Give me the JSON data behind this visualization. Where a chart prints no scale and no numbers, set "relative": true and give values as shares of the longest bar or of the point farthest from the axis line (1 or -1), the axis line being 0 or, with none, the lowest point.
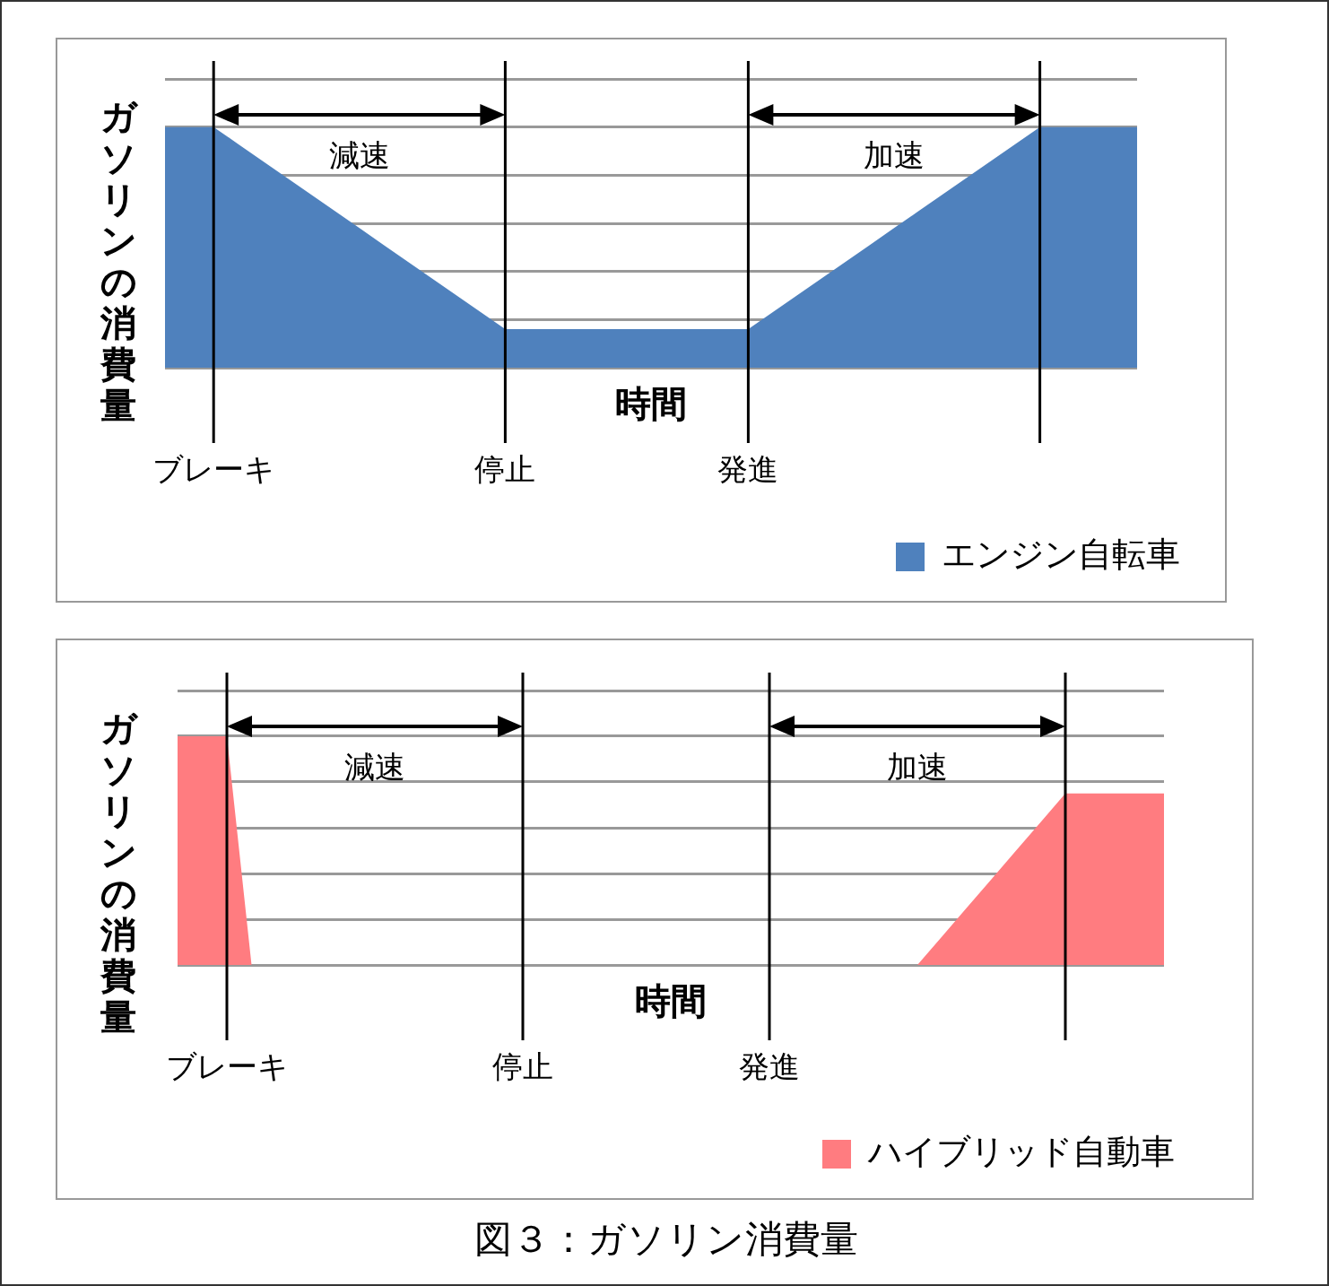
{
  "chart_data": [
    {
      "type": "area",
      "relative": true,
      "xlabel": "時間",
      "ylabel": "ガソリンの消費量",
      "tick_labels": "x",
      "grid": true,
      "legend": "bottom right",
      "categories": [
        null,
        null,
        "ブレーキ",
        null,
        null,
        null,
        null,
        null,
        null,
        null,
        null,
        null,
        null,
        null,
        "停止",
        null,
        null,
        null,
        null,
        null,
        null,
        null,
        null,
        null,
        "発進",
        null,
        null,
        null,
        null,
        null,
        null,
        null,
        null,
        null,
        null,
        null,
        null,
        null,
        null,
        null,
        null
      ],
      "series": [
        {
          "name": "エンジン自転車",
          "color": "#4f81bd",
          "values": [
            1,
            1,
            1,
            0.93,
            0.86,
            0.79,
            0.72,
            0.65,
            0.58,
            0.51,
            0.44,
            0.37,
            0.3,
            0.23,
            0.16,
            0.16,
            0.16,
            0.16,
            0.16,
            0.16,
            0.16,
            0.16,
            0.16,
            0.16,
            0.16,
            0.23,
            0.3,
            0.37,
            0.44,
            0.51,
            0.58,
            0.65,
            0.72,
            0.79,
            0.86,
            0.93,
            1,
            1,
            1,
            1,
            1
          ]
        }
      ],
      "annotations": [
        "減速",
        "加速"
      ]
    },
    {
      "type": "area",
      "relative": true,
      "xlabel": "時間",
      "ylabel": "ガソリンの消費量",
      "tick_labels": "x",
      "grid": true,
      "legend": "bottom right",
      "categories": [
        null,
        null,
        "ブレーキ",
        null,
        null,
        null,
        null,
        null,
        null,
        null,
        null,
        null,
        null,
        null,
        "停止",
        null,
        null,
        null,
        null,
        null,
        null,
        null,
        null,
        null,
        "発進",
        null,
        null,
        null,
        null,
        null,
        null,
        null,
        null,
        null,
        null,
        null,
        null,
        null,
        null,
        null,
        null
      ],
      "series": [
        {
          "name": "ハイブリッド自動車",
          "color": "#ff7c80",
          "values": [
            1,
            1,
            1,
            0,
            0,
            0,
            0,
            0,
            0,
            0,
            0,
            0,
            0,
            0,
            0,
            0,
            0,
            0,
            0,
            0,
            0,
            0,
            0,
            0,
            0,
            0,
            0,
            0,
            0,
            0,
            0,
            0.125,
            0.25,
            0.375,
            0.5,
            0.625,
            0.75,
            0.75,
            0.75,
            0.75,
            0.75
          ]
        }
      ],
      "annotations": [
        "減速",
        "加速",
        "図３：ガソリン消費量"
      ]
    }
  ]
}
